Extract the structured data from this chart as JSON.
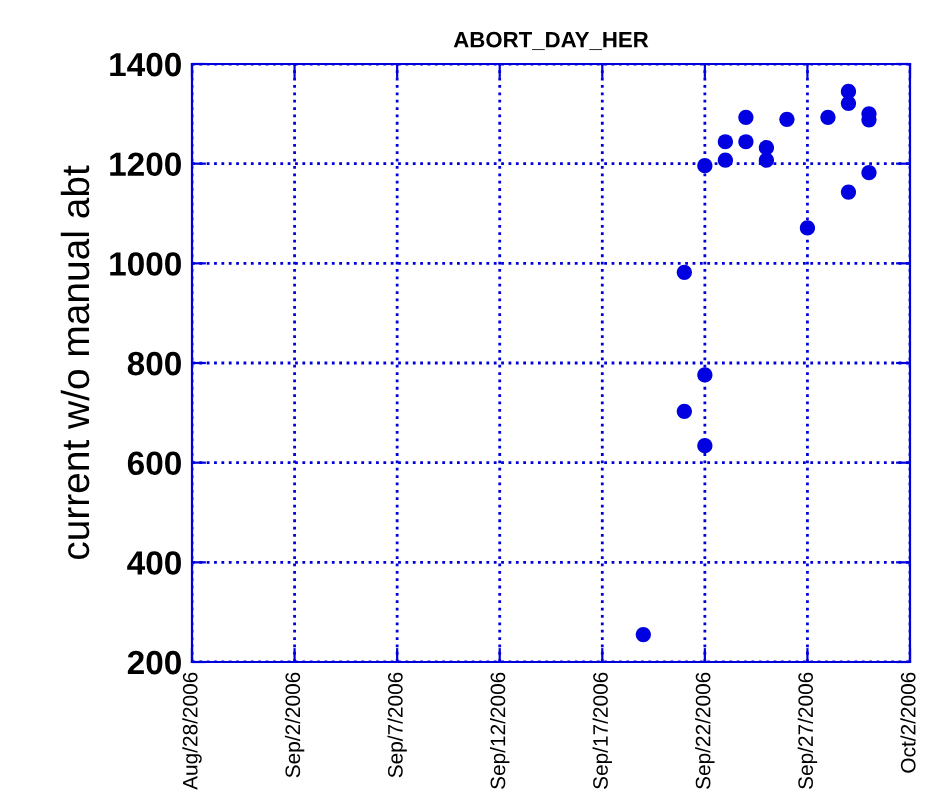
{
  "chart_data": {
    "type": "scatter",
    "title": "ABORT_DAY_HER",
    "ylabel": "current w/o manual abt",
    "x": [
      "2006-09-19",
      "2006-09-21",
      "2006-09-21",
      "2006-09-22",
      "2006-09-22",
      "2006-09-22",
      "2006-09-23",
      "2006-09-23",
      "2006-09-24",
      "2006-09-24",
      "2006-09-25",
      "2006-09-25",
      "2006-09-26",
      "2006-09-27",
      "2006-09-28",
      "2006-09-29",
      "2006-09-29",
      "2006-09-29",
      "2006-09-30",
      "2006-09-30",
      "2006-09-30"
    ],
    "series": [
      {
        "color": "#0000e0",
        "values": [
          255,
          982,
          703,
          776,
          634,
          1196,
          1244,
          1207,
          1293,
          1244,
          1232,
          1207,
          1289,
          1071,
          1293,
          1345,
          1321,
          1143,
          1300,
          1288,
          1182
        ]
      }
    ],
    "xlim": [
      "2006-08-28",
      "2006-10-02"
    ],
    "xticks": [
      {
        "value": "2006-08-28",
        "label": "Aug/28/2006"
      },
      {
        "value": "2006-09-02",
        "label": "Sep/2/2006"
      },
      {
        "value": "2006-09-07",
        "label": "Sep/7/2006"
      },
      {
        "value": "2006-09-12",
        "label": "Sep/12/2006"
      },
      {
        "value": "2006-09-17",
        "label": "Sep/17/2006"
      },
      {
        "value": "2006-09-22",
        "label": "Sep/22/2006"
      },
      {
        "value": "2006-09-27",
        "label": "Sep/27/2006"
      },
      {
        "value": "2006-10-02",
        "label": "Oct/2/2006"
      }
    ],
    "ylim": [
      200,
      1400
    ],
    "yticks": [
      200,
      400,
      600,
      800,
      1000,
      1200,
      1400
    ],
    "grid": true,
    "marker": "circle"
  }
}
